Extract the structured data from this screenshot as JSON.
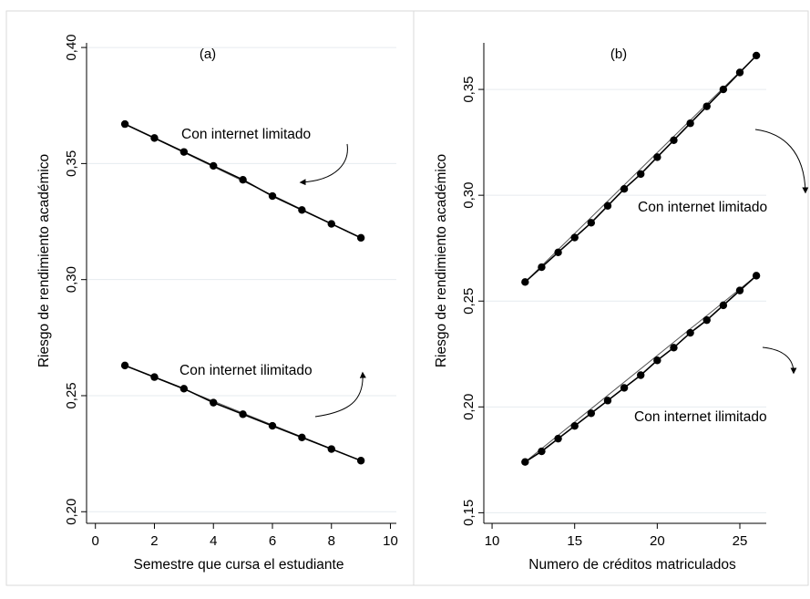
{
  "chart_data": [
    {
      "type": "line",
      "panel_label": "(a)",
      "xlabel": "Semestre que cursa el estudiante",
      "ylabel": "Riesgo de rendimiento académico",
      "xlim": [
        -0.3,
        10.2
      ],
      "ylim": [
        0.195,
        0.402
      ],
      "xticks": [
        0,
        2,
        4,
        6,
        8,
        10
      ],
      "xtick_labels": [
        "0",
        "2",
        "4",
        "6",
        "8",
        "10"
      ],
      "yticks": [
        0.2,
        0.25,
        0.3,
        0.35,
        0.4
      ],
      "ytick_labels": [
        "0,20",
        "0,25",
        "0,30",
        "0,35",
        "0,40"
      ],
      "grid": "horizontal",
      "x": [
        1,
        2,
        3,
        4,
        5,
        6,
        7,
        8,
        9
      ],
      "series": [
        {
          "name": "Con internet limitado",
          "values": [
            0.367,
            0.361,
            0.355,
            0.349,
            0.343,
            0.336,
            0.33,
            0.324,
            0.318
          ]
        },
        {
          "name": "Con internet ilimitado",
          "values": [
            0.263,
            0.258,
            0.253,
            0.247,
            0.242,
            0.237,
            0.232,
            0.227,
            0.222
          ]
        }
      ]
    },
    {
      "type": "line",
      "panel_label": "(b)",
      "xlabel": "Numero de créditos matriculados",
      "ylabel": "Riesgo de rendimiento académico",
      "xlim": [
        9.5,
        26.6
      ],
      "ylim": [
        0.145,
        0.372
      ],
      "xticks": [
        10,
        15,
        20,
        25
      ],
      "xtick_labels": [
        "10",
        "15",
        "20",
        "25"
      ],
      "yticks": [
        0.15,
        0.2,
        0.25,
        0.3,
        0.35
      ],
      "ytick_labels": [
        "0,15",
        "0,20",
        "0,25",
        "0,30",
        "0,35"
      ],
      "grid": "horizontal",
      "x": [
        12,
        13,
        14,
        15,
        16,
        17,
        18,
        19,
        20,
        21,
        22,
        23,
        24,
        25,
        26
      ],
      "series": [
        {
          "name": "Con internet limitado",
          "values": [
            0.259,
            0.266,
            0.273,
            0.28,
            0.287,
            0.295,
            0.303,
            0.31,
            0.318,
            0.326,
            0.334,
            0.342,
            0.35,
            0.358,
            0.366
          ]
        },
        {
          "name": "Con internet ilimitado",
          "values": [
            0.174,
            0.179,
            0.185,
            0.191,
            0.197,
            0.203,
            0.209,
            0.215,
            0.222,
            0.228,
            0.235,
            0.241,
            0.248,
            0.255,
            0.262
          ]
        }
      ]
    }
  ]
}
